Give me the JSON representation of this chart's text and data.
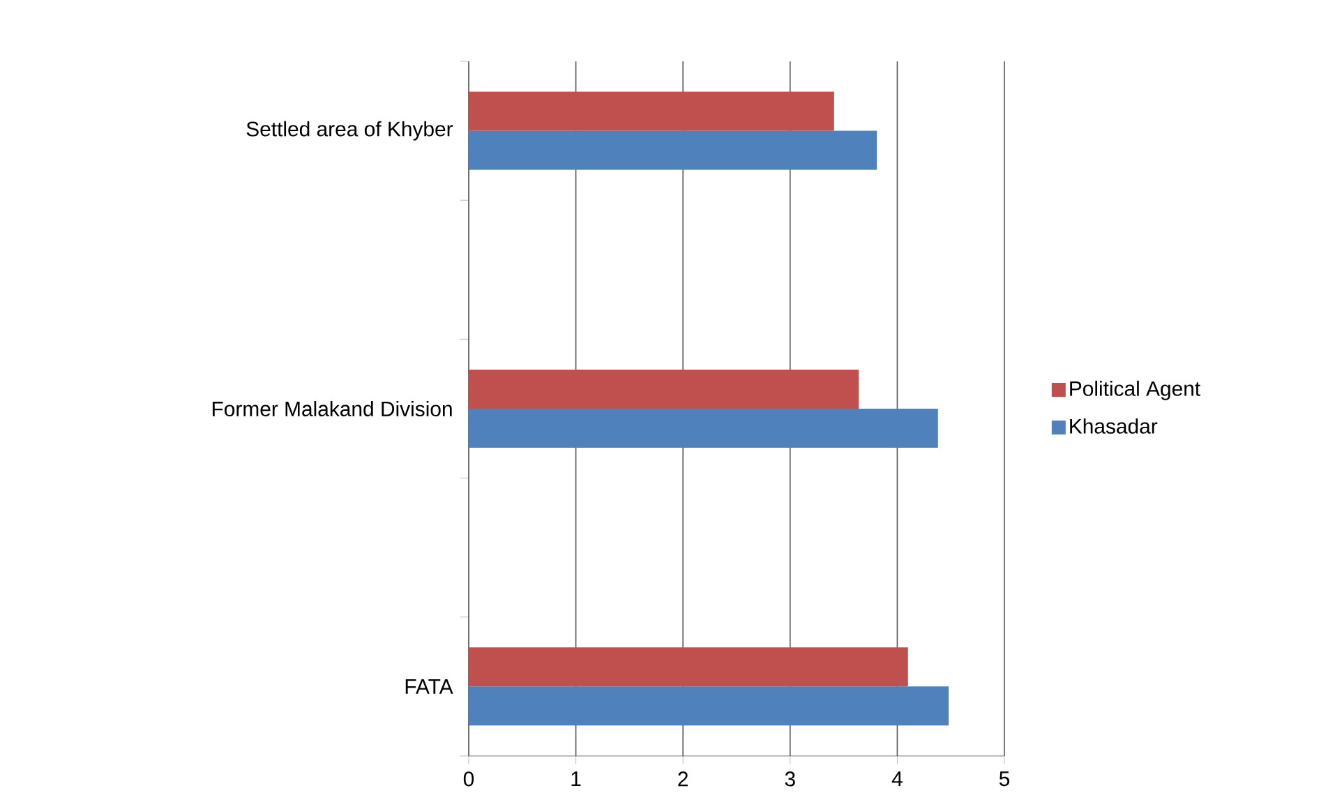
{
  "chart_data": {
    "type": "bar",
    "orientation": "horizontal",
    "categories": [
      "Settled area of Khyber",
      null,
      "Former Malakand Division",
      null,
      "FATA"
    ],
    "series": [
      {
        "name": "Khasadar",
        "color": "#4f81bd",
        "values": [
          3.81,
          null,
          4.38,
          null,
          4.48
        ]
      },
      {
        "name": "Political Agent",
        "color": "#c0504d",
        "values": [
          3.41,
          null,
          3.64,
          null,
          4.1
        ]
      }
    ],
    "xlim": [
      0,
      5
    ],
    "xticks": [
      0,
      1,
      2,
      3,
      4,
      5
    ],
    "grid": "x",
    "legend": "right"
  }
}
